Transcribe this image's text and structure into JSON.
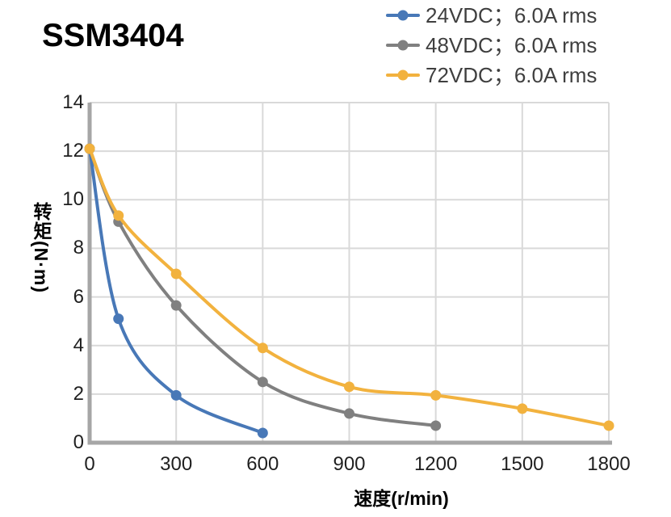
{
  "page_title": "SSM3404",
  "chart_data": {
    "type": "line",
    "title": "SSM3404",
    "xlabel": "速度(r/min)",
    "ylabel": "转矩(N·m)",
    "xlim": [
      0,
      1800
    ],
    "ylim": [
      0,
      14
    ],
    "xticks": [
      0,
      300,
      600,
      900,
      1200,
      1500,
      1800
    ],
    "yticks": [
      0,
      2,
      4,
      6,
      8,
      10,
      12,
      14
    ],
    "grid": true,
    "legend_position": "top-right",
    "marker": "circle",
    "series": [
      {
        "name": "24VDC；6.0A rms",
        "color": "#4878B7",
        "x": [
          0,
          100,
          300,
          600
        ],
        "y": [
          12.1,
          5.1,
          1.95,
          0.4
        ]
      },
      {
        "name": "48VDC；6.0A rms",
        "color": "#808080",
        "x": [
          0,
          100,
          300,
          600,
          900,
          1200
        ],
        "y": [
          12.1,
          9.1,
          5.65,
          2.5,
          1.2,
          0.7
        ]
      },
      {
        "name": "72VDC；6.0A rms",
        "color": "#F2B23E",
        "x": [
          0,
          100,
          300,
          600,
          900,
          1200,
          1500,
          1800
        ],
        "y": [
          12.1,
          9.35,
          6.95,
          3.9,
          2.3,
          1.95,
          1.4,
          0.7
        ]
      }
    ]
  },
  "style": {
    "background": "#ffffff",
    "grid_color": "#d9d9d9",
    "axis_color": "#a6a6a6",
    "tick_text_color": "#1f1f1f",
    "legend_text_color": "#3f3f3f",
    "title_color": "#000000"
  }
}
